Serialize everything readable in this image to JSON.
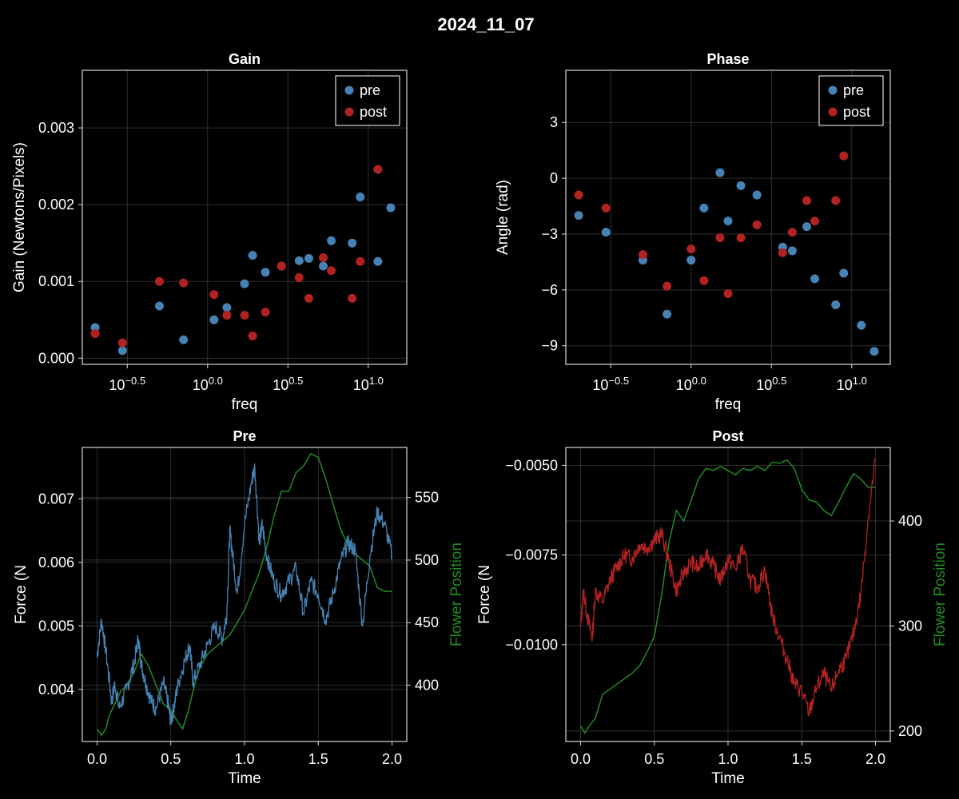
{
  "figure": {
    "title": "2024_11_07"
  },
  "colors": {
    "pre": "#4682b4",
    "post": "#b22222",
    "flower": "#228b22",
    "background": "#000000",
    "text": "#ffffff"
  },
  "chart_data": [
    {
      "id": "gain",
      "type": "scatter",
      "title": "Gain",
      "xlabel": "freq",
      "ylabel": "Gain (Newtons/Pixels)",
      "xscale": "log10",
      "xlim_log10": [
        -0.78,
        1.24
      ],
      "ylim": [
        -8e-05,
        0.00375
      ],
      "xticks_log10": [
        -0.5,
        0.0,
        0.5,
        1.0
      ],
      "xtick_labels": [
        {
          "base": "10",
          "exp": "−0.5"
        },
        {
          "base": "10",
          "exp": "0.0"
        },
        {
          "base": "10",
          "exp": "0.5"
        },
        {
          "base": "10",
          "exp": "1.0"
        }
      ],
      "yticks": [
        0.0,
        0.001,
        0.002,
        0.003
      ],
      "ytick_labels": [
        "0.000",
        "0.001",
        "0.002",
        "0.003"
      ],
      "grid": true,
      "legend": {
        "position": "top-right",
        "entries": [
          "pre",
          "post"
        ]
      },
      "series": [
        {
          "name": "pre",
          "color": "#4682b4",
          "x": [
            -0.7,
            -0.53,
            -0.3,
            -0.15,
            0.04,
            0.12,
            0.23,
            0.28,
            0.36,
            0.46,
            0.57,
            0.63,
            0.72,
            0.77,
            0.9,
            0.95,
            1.06,
            1.14
          ],
          "y": [
            0.0004,
            0.0001,
            0.00068,
            0.00024,
            0.0005,
            0.00066,
            0.00097,
            0.00134,
            0.00112,
            0.0012,
            0.00127,
            0.0013,
            0.0012,
            0.00153,
            0.0015,
            0.0021,
            0.00126,
            0.00196
          ]
        },
        {
          "name": "post",
          "color": "#b22222",
          "x": [
            -0.7,
            -0.53,
            -0.3,
            -0.15,
            0.04,
            0.12,
            0.23,
            0.28,
            0.36,
            0.46,
            0.57,
            0.63,
            0.72,
            0.77,
            0.9,
            0.95,
            1.06
          ],
          "y": [
            0.00032,
            0.0002,
            0.001,
            0.00098,
            0.00083,
            0.00056,
            0.00056,
            0.00029,
            0.0006,
            0.0012,
            0.00105,
            0.00078,
            0.00131,
            0.00114,
            0.00078,
            0.00126,
            0.00246
          ]
        }
      ]
    },
    {
      "id": "phase",
      "type": "scatter",
      "title": "Phase",
      "xlabel": "freq",
      "ylabel": "Angle (rad)",
      "xscale": "log10",
      "xlim_log10": [
        -0.78,
        1.24
      ],
      "ylim": [
        -10.0,
        5.8
      ],
      "xticks_log10": [
        -0.5,
        0.0,
        0.5,
        1.0
      ],
      "xtick_labels": [
        {
          "base": "10",
          "exp": "−0.5"
        },
        {
          "base": "10",
          "exp": "0.0"
        },
        {
          "base": "10",
          "exp": "0.5"
        },
        {
          "base": "10",
          "exp": "1.0"
        }
      ],
      "yticks": [
        -9,
        -6,
        -3,
        0,
        3
      ],
      "ytick_labels": [
        "−9",
        "−6",
        "−3",
        "0",
        "3"
      ],
      "grid": true,
      "legend": {
        "position": "top-right",
        "entries": [
          "pre",
          "post"
        ]
      },
      "series": [
        {
          "name": "pre",
          "color": "#4682b4",
          "x": [
            -0.7,
            -0.53,
            -0.3,
            -0.15,
            0.0,
            0.08,
            0.18,
            0.23,
            0.31,
            0.41,
            0.57,
            0.63,
            0.72,
            0.77,
            0.9,
            0.95,
            1.06,
            1.14
          ],
          "y": [
            -2.0,
            -2.9,
            -4.4,
            -7.3,
            -4.4,
            -1.6,
            0.3,
            -2.3,
            -0.4,
            -0.9,
            -3.7,
            -3.9,
            -2.6,
            -5.4,
            -6.8,
            -5.1,
            -7.9,
            -9.3
          ]
        },
        {
          "name": "post",
          "color": "#b22222",
          "x": [
            -0.7,
            -0.53,
            -0.3,
            -0.15,
            0.0,
            0.08,
            0.18,
            0.23,
            0.31,
            0.41,
            0.57,
            0.63,
            0.72,
            0.77,
            0.9,
            0.95
          ],
          "y": [
            -0.9,
            -1.6,
            -4.1,
            -5.8,
            -3.8,
            -5.5,
            -3.2,
            -6.2,
            -3.2,
            -2.5,
            -4.0,
            -2.9,
            -1.2,
            -2.3,
            -1.2,
            1.2
          ]
        }
      ]
    },
    {
      "id": "pre",
      "type": "line",
      "title": "Pre",
      "xlabel": "Time",
      "ylabel": "Force (N",
      "y2label": "Flower Position",
      "xlim": [
        -0.1,
        2.1
      ],
      "ylim": [
        0.00318,
        0.00781
      ],
      "y2lim": [
        355,
        590
      ],
      "xticks": [
        0.0,
        0.5,
        1.0,
        1.5,
        2.0
      ],
      "xtick_labels": [
        "0.0",
        "0.5",
        "1.0",
        "1.5",
        "2.0"
      ],
      "yticks": [
        0.004,
        0.005,
        0.006,
        0.007
      ],
      "ytick_labels": [
        "0.004",
        "0.005",
        "0.006",
        "0.007"
      ],
      "y2ticks": [
        400,
        450,
        500,
        550
      ],
      "y2tick_labels": [
        "400",
        "450",
        "500",
        "550"
      ],
      "grid": true,
      "force_series": {
        "name": "pre",
        "color": "#4682b4",
        "t": [
          0.0,
          0.03,
          0.06,
          0.1,
          0.12,
          0.15,
          0.2,
          0.25,
          0.28,
          0.3,
          0.33,
          0.37,
          0.4,
          0.45,
          0.48,
          0.5,
          0.52,
          0.55,
          0.6,
          0.63,
          0.65,
          0.7,
          0.75,
          0.8,
          0.85,
          0.88,
          0.9,
          0.92,
          0.95,
          1.0,
          1.05,
          1.07,
          1.1,
          1.12,
          1.15,
          1.2,
          1.25,
          1.3,
          1.35,
          1.4,
          1.45,
          1.5,
          1.55,
          1.6,
          1.65,
          1.7,
          1.75,
          1.8,
          1.85,
          1.9,
          1.95,
          2.0
        ],
        "y": [
          0.0045,
          0.0051,
          0.0046,
          0.0038,
          0.0041,
          0.0037,
          0.004,
          0.0044,
          0.0048,
          0.0044,
          0.0041,
          0.0038,
          0.0037,
          0.0041,
          0.0038,
          0.0035,
          0.0037,
          0.0041,
          0.0045,
          0.0047,
          0.0041,
          0.0044,
          0.0047,
          0.005,
          0.0048,
          0.0052,
          0.0065,
          0.0061,
          0.0055,
          0.0066,
          0.0073,
          0.0075,
          0.0063,
          0.0066,
          0.0061,
          0.0057,
          0.0055,
          0.0057,
          0.0059,
          0.0052,
          0.0057,
          0.0055,
          0.0051,
          0.0055,
          0.006,
          0.0063,
          0.0062,
          0.005,
          0.0061,
          0.0068,
          0.0066,
          0.0061
        ]
      },
      "flower_series": {
        "name": "Flower Position",
        "color": "#228b22",
        "t": [
          0.0,
          0.03,
          0.06,
          0.08,
          0.12,
          0.16,
          0.2,
          0.25,
          0.3,
          0.35,
          0.4,
          0.45,
          0.5,
          0.55,
          0.58,
          0.62,
          0.66,
          0.7,
          0.75,
          0.8,
          0.85,
          0.9,
          0.95,
          1.0,
          1.05,
          1.1,
          1.15,
          1.2,
          1.25,
          1.3,
          1.35,
          1.4,
          1.45,
          1.5,
          1.55,
          1.6,
          1.65,
          1.7,
          1.75,
          1.8,
          1.85,
          1.9,
          1.95,
          2.0
        ],
        "y": [
          365,
          360,
          365,
          375,
          385,
          395,
          400,
          410,
          425,
          415,
          400,
          385,
          380,
          370,
          365,
          380,
          400,
          415,
          425,
          430,
          435,
          440,
          450,
          460,
          475,
          490,
          510,
          535,
          555,
          555,
          570,
          575,
          585,
          582,
          565,
          545,
          525,
          512,
          505,
          500,
          495,
          478,
          475,
          475
        ]
      },
      "interpolation_note": null
    },
    {
      "id": "post",
      "type": "line",
      "title": "Post",
      "xlabel": "Time",
      "ylabel": "Force (N",
      "y2label": "Flower Position",
      "xlim": [
        -0.1,
        2.1
      ],
      "ylim": [
        -0.0127,
        -0.0045
      ],
      "y2lim": [
        190,
        470
      ],
      "xticks": [
        0.0,
        0.5,
        1.0,
        1.5,
        2.0
      ],
      "xtick_labels": [
        "0.0",
        "0.5",
        "1.0",
        "1.5",
        "2.0"
      ],
      "yticks": [
        -0.01,
        -0.0075,
        -0.005
      ],
      "ytick_labels": [
        "−0.0100",
        "−0.0075",
        "−0.0050"
      ],
      "y2ticks": [
        200,
        300,
        400
      ],
      "y2tick_labels": [
        "200",
        "300",
        "400"
      ],
      "grid": true,
      "force_series": {
        "name": "post",
        "color": "#b22222",
        "t": [
          0.0,
          0.02,
          0.05,
          0.08,
          0.1,
          0.15,
          0.2,
          0.25,
          0.3,
          0.35,
          0.4,
          0.45,
          0.5,
          0.55,
          0.6,
          0.65,
          0.7,
          0.75,
          0.8,
          0.85,
          0.9,
          0.95,
          1.0,
          1.05,
          1.1,
          1.15,
          1.2,
          1.25,
          1.3,
          1.35,
          1.4,
          1.45,
          1.5,
          1.55,
          1.6,
          1.65,
          1.7,
          1.75,
          1.8,
          1.85,
          1.9,
          1.95,
          2.0
        ],
        "y": [
          -0.0095,
          -0.0085,
          -0.0093,
          -0.0098,
          -0.0085,
          -0.0088,
          -0.0082,
          -0.0078,
          -0.0075,
          -0.0076,
          -0.0072,
          -0.0073,
          -0.0071,
          -0.0069,
          -0.0077,
          -0.0085,
          -0.008,
          -0.0077,
          -0.0079,
          -0.0074,
          -0.0078,
          -0.0082,
          -0.0076,
          -0.0079,
          -0.0073,
          -0.0082,
          -0.0084,
          -0.0079,
          -0.0092,
          -0.0098,
          -0.0104,
          -0.0111,
          -0.0113,
          -0.0119,
          -0.0112,
          -0.0108,
          -0.0113,
          -0.0107,
          -0.0104,
          -0.0097,
          -0.0086,
          -0.0065,
          -0.0048
        ]
      },
      "flower_series": {
        "name": "Flower Position",
        "color": "#228b22",
        "t": [
          0.0,
          0.03,
          0.06,
          0.1,
          0.15,
          0.2,
          0.25,
          0.3,
          0.35,
          0.4,
          0.45,
          0.5,
          0.55,
          0.6,
          0.65,
          0.7,
          0.75,
          0.8,
          0.85,
          0.9,
          0.95,
          1.0,
          1.05,
          1.1,
          1.15,
          1.2,
          1.25,
          1.3,
          1.35,
          1.4,
          1.45,
          1.5,
          1.55,
          1.6,
          1.65,
          1.7,
          1.75,
          1.8,
          1.85,
          1.9,
          1.95,
          2.0
        ],
        "y": [
          205,
          198,
          205,
          212,
          235,
          240,
          245,
          250,
          255,
          262,
          275,
          290,
          330,
          380,
          410,
          400,
          420,
          440,
          450,
          448,
          452,
          448,
          444,
          450,
          448,
          452,
          448,
          456,
          455,
          458,
          450,
          430,
          420,
          418,
          410,
          405,
          418,
          432,
          445,
          440,
          432,
          432
        ]
      }
    }
  ]
}
